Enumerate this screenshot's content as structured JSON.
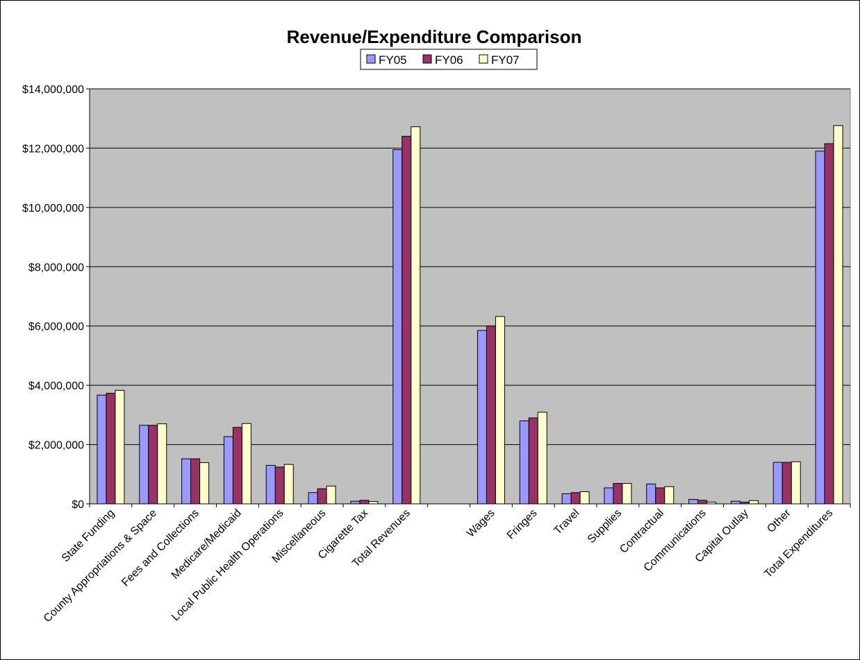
{
  "chart_data": {
    "type": "bar",
    "title": "Revenue/Expenditure Comparison",
    "xlabel": "",
    "ylabel": "",
    "ylim": [
      0,
      14000000
    ],
    "yticks": [
      0,
      2000000,
      4000000,
      6000000,
      8000000,
      10000000,
      12000000,
      14000000
    ],
    "ytick_labels": [
      "$0",
      "$2,000,000",
      "$4,000,000",
      "$6,000,000",
      "$8,000,000",
      "$10,000,000",
      "$12,000,000",
      "$14,000,000"
    ],
    "grid": true,
    "legend": "top-center",
    "categories": [
      "State Funding",
      "County Appropriations & Space",
      "Fees and Collections",
      "Medicare/Medicaid",
      "Local Public Health Operations",
      "Miscellaneous",
      "Cigarette Tax",
      "Total Revenues",
      "",
      "Wages",
      "Fringes",
      "Travel",
      "Supplies",
      "Contractual",
      "Communications",
      "Capital Outlay",
      "Other",
      "Total Expenditures"
    ],
    "series": [
      {
        "name": "FY05",
        "color": "#9999FF",
        "values": [
          3670000,
          2650000,
          1520000,
          2270000,
          1300000,
          380000,
          90000,
          11950000,
          null,
          5850000,
          2800000,
          340000,
          540000,
          670000,
          150000,
          90000,
          1400000,
          11900000
        ]
      },
      {
        "name": "FY06",
        "color": "#993366",
        "values": [
          3730000,
          2650000,
          1520000,
          2580000,
          1240000,
          510000,
          120000,
          12400000,
          null,
          6000000,
          2900000,
          380000,
          690000,
          540000,
          120000,
          60000,
          1400000,
          12150000
        ]
      },
      {
        "name": "FY07",
        "color": "#FFFFCC",
        "values": [
          3830000,
          2700000,
          1390000,
          2710000,
          1330000,
          600000,
          80000,
          12720000,
          null,
          6320000,
          3090000,
          410000,
          690000,
          580000,
          60000,
          110000,
          1420000,
          12760000
        ]
      }
    ]
  }
}
